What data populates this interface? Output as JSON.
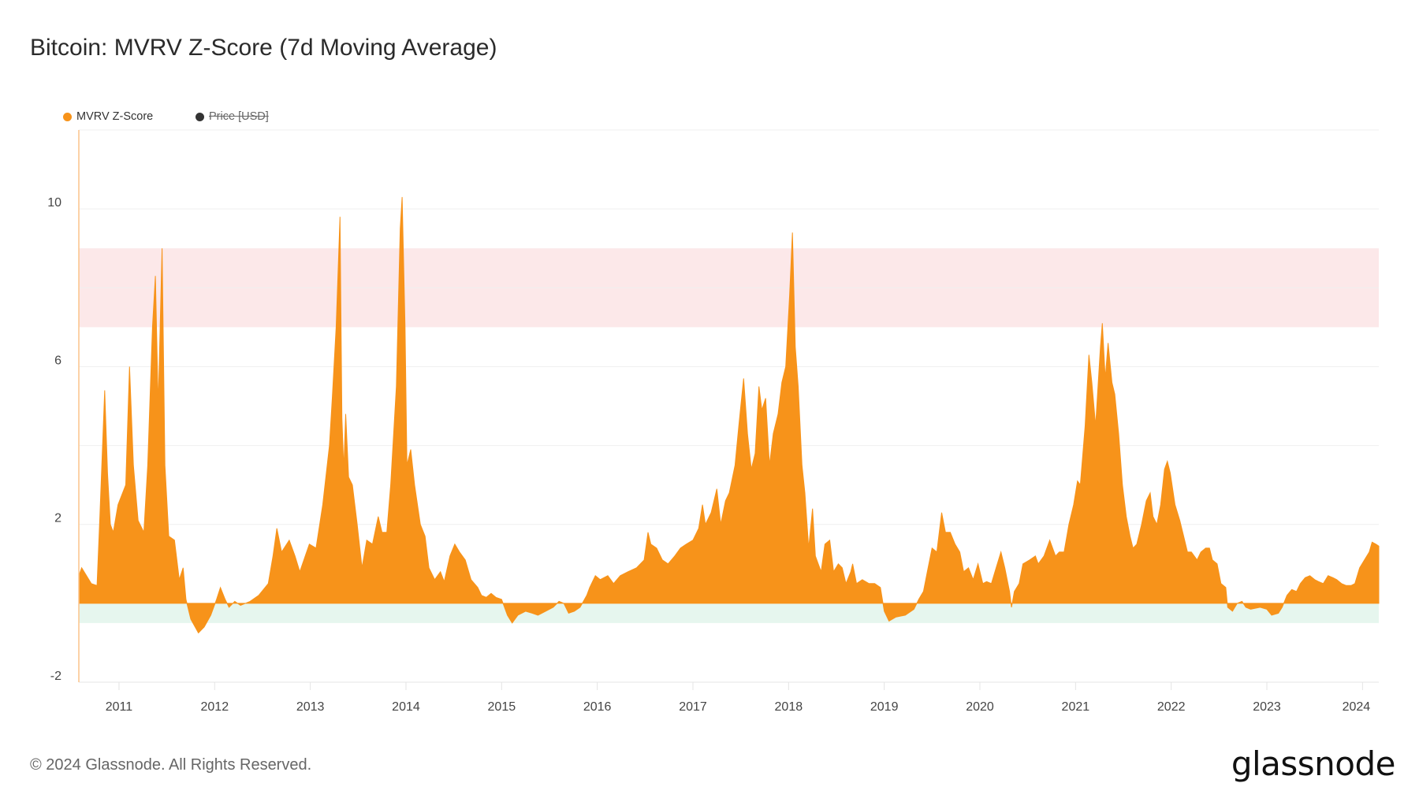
{
  "title": "Bitcoin: MVRV Z-Score (7d Moving Average)",
  "legend": [
    {
      "label": "MVRV Z-Score",
      "color": "#f7931a",
      "active": true
    },
    {
      "label": "Price [USD]",
      "color": "#333333",
      "active": false
    }
  ],
  "footer": "© 2024 Glassnode. All Rights Reserved.",
  "logo": "glassnode",
  "chart_data": {
    "type": "area",
    "title": "Bitcoin: MVRV Z-Score (7d Moving Average)",
    "xlabel": "",
    "ylabel": "",
    "xlim": [
      2010.58,
      2024.17
    ],
    "ylim": [
      -2,
      12
    ],
    "grid": true,
    "legend_position": "top-left",
    "x_ticks": [
      "2011",
      "2012",
      "2013",
      "2014",
      "2015",
      "2016",
      "2017",
      "2018",
      "2019",
      "2020",
      "2021",
      "2022",
      "2023",
      "2024"
    ],
    "y_ticks": [
      10,
      6,
      2,
      -2
    ],
    "y_grid": [
      -2,
      0,
      2,
      4,
      6,
      8,
      10,
      12
    ],
    "bands": [
      {
        "name": "overvalued-zone",
        "from": 7,
        "to": 9,
        "color": "#fce8e9"
      },
      {
        "name": "undervalued-zone",
        "from": -0.5,
        "to": 0,
        "color": "#e6f6ee"
      }
    ],
    "series": [
      {
        "name": "MVRV Z-Score",
        "color": "#f7931a",
        "x": [
          2010.58,
          2010.61,
          2010.71,
          2010.77,
          2010.8,
          2010.85,
          2010.88,
          2010.91,
          2010.94,
          2010.99,
          2011.07,
          2011.11,
          2011.15,
          2011.2,
          2011.26,
          2011.3,
          2011.35,
          2011.38,
          2011.41,
          2011.45,
          2011.48,
          2011.52,
          2011.58,
          2011.63,
          2011.67,
          2011.7,
          2011.75,
          2011.83,
          2011.89,
          2011.96,
          2012.02,
          2012.06,
          2012.11,
          2012.15,
          2012.21,
          2012.27,
          2012.37,
          2012.46,
          2012.56,
          2012.61,
          2012.65,
          2012.7,
          2012.78,
          2012.84,
          2012.89,
          2012.99,
          2013.06,
          2013.13,
          2013.2,
          2013.23,
          2013.27,
          2013.31,
          2013.33,
          2013.35,
          2013.37,
          2013.4,
          2013.44,
          2013.49,
          2013.54,
          2013.59,
          2013.65,
          2013.71,
          2013.75,
          2013.8,
          2013.84,
          2013.9,
          2013.94,
          2013.96,
          2013.99,
          2014.01,
          2014.05,
          2014.09,
          2014.15,
          2014.2,
          2014.24,
          2014.3,
          2014.36,
          2014.4,
          2014.46,
          2014.51,
          2014.56,
          2014.62,
          2014.68,
          2014.75,
          2014.79,
          2014.84,
          2014.89,
          2014.94,
          2015.0,
          2015.06,
          2015.11,
          2015.17,
          2015.25,
          2015.32,
          2015.38,
          2015.46,
          2015.54,
          2015.6,
          2015.65,
          2015.7,
          2015.76,
          2015.82,
          2015.89,
          2015.92,
          2015.98,
          2016.03,
          2016.11,
          2016.17,
          2016.24,
          2016.32,
          2016.41,
          2016.49,
          2016.53,
          2016.56,
          2016.62,
          2016.68,
          2016.74,
          2016.81,
          2016.87,
          2016.93,
          2017.0,
          2017.06,
          2017.1,
          2017.13,
          2017.19,
          2017.25,
          2017.29,
          2017.34,
          2017.38,
          2017.44,
          2017.48,
          2017.5,
          2017.53,
          2017.57,
          2017.61,
          2017.65,
          2017.69,
          2017.72,
          2017.76,
          2017.8,
          2017.84,
          2017.89,
          2017.93,
          2017.97,
          2018.01,
          2018.04,
          2018.07,
          2018.1,
          2018.14,
          2018.17,
          2018.21,
          2018.25,
          2018.28,
          2018.34,
          2018.38,
          2018.43,
          2018.47,
          2018.52,
          2018.56,
          2018.6,
          2018.65,
          2018.67,
          2018.71,
          2018.77,
          2018.84,
          2018.9,
          2018.96,
          2019.0,
          2019.05,
          2019.12,
          2019.22,
          2019.31,
          2019.36,
          2019.41,
          2019.45,
          2019.5,
          2019.55,
          2019.6,
          2019.64,
          2019.69,
          2019.74,
          2019.79,
          2019.83,
          2019.88,
          2019.93,
          2019.98,
          2020.03,
          2020.07,
          2020.12,
          2020.17,
          2020.22,
          2020.26,
          2020.31,
          2020.33,
          2020.36,
          2020.41,
          2020.45,
          2020.52,
          2020.58,
          2020.61,
          2020.67,
          2020.73,
          2020.79,
          2020.83,
          2020.88,
          2020.93,
          2020.98,
          2021.02,
          2021.05,
          2021.1,
          2021.14,
          2021.17,
          2021.21,
          2021.26,
          2021.28,
          2021.31,
          2021.34,
          2021.38,
          2021.41,
          2021.45,
          2021.49,
          2021.53,
          2021.57,
          2021.6,
          2021.64,
          2021.69,
          2021.74,
          2021.78,
          2021.81,
          2021.85,
          2021.89,
          2021.93,
          2021.96,
          2021.99,
          2022.04,
          2022.09,
          2022.14,
          2022.17,
          2022.21,
          2022.27,
          2022.31,
          2022.36,
          2022.4,
          2022.43,
          2022.48,
          2022.52,
          2022.57,
          2022.59,
          2022.64,
          2022.69,
          2022.74,
          2022.78,
          2022.83,
          2022.93,
          2023.0,
          2023.05,
          2023.12,
          2023.16,
          2023.21,
          2023.26,
          2023.31,
          2023.35,
          2023.4,
          2023.45,
          2023.5,
          2023.54,
          2023.59,
          2023.64,
          2023.69,
          2023.73,
          2023.78,
          2023.83,
          2023.88,
          2023.92,
          2023.97,
          2024.02,
          2024.07,
          2024.1,
          2024.14,
          2024.17
        ],
        "y": [
          0.7,
          0.9,
          0.5,
          0.45,
          2.2,
          5.4,
          3.3,
          2.0,
          1.8,
          2.5,
          3.0,
          6.0,
          3.5,
          2.1,
          1.8,
          3.5,
          7.0,
          8.3,
          5.0,
          9.0,
          3.5,
          1.7,
          1.6,
          0.6,
          0.9,
          0.1,
          -0.4,
          -0.75,
          -0.6,
          -0.3,
          0.1,
          0.4,
          0.1,
          -0.1,
          0.05,
          -0.05,
          0.05,
          0.2,
          0.5,
          1.2,
          1.9,
          1.3,
          1.6,
          1.2,
          0.8,
          1.5,
          1.4,
          2.5,
          4.0,
          5.2,
          7.0,
          9.8,
          4.7,
          3.4,
          4.8,
          3.2,
          3.0,
          2.0,
          0.9,
          1.6,
          1.5,
          2.2,
          1.8,
          1.8,
          3.0,
          5.5,
          9.5,
          10.3,
          7.0,
          3.5,
          3.9,
          3.0,
          2.0,
          1.7,
          0.9,
          0.6,
          0.8,
          0.55,
          1.2,
          1.5,
          1.3,
          1.1,
          0.6,
          0.4,
          0.2,
          0.15,
          0.25,
          0.15,
          0.1,
          -0.3,
          -0.5,
          -0.3,
          -0.2,
          -0.25,
          -0.3,
          -0.2,
          -0.1,
          0.05,
          0.0,
          -0.25,
          -0.2,
          -0.1,
          0.2,
          0.4,
          0.7,
          0.6,
          0.7,
          0.5,
          0.7,
          0.8,
          0.9,
          1.1,
          1.8,
          1.5,
          1.4,
          1.1,
          1.0,
          1.2,
          1.4,
          1.5,
          1.6,
          1.9,
          2.5,
          2.0,
          2.3,
          2.9,
          2.0,
          2.6,
          2.8,
          3.5,
          4.5,
          5.0,
          5.7,
          4.3,
          3.4,
          3.8,
          5.5,
          4.9,
          5.2,
          3.5,
          4.3,
          4.8,
          5.6,
          6.0,
          7.8,
          9.4,
          6.5,
          5.5,
          3.5,
          2.8,
          1.4,
          2.4,
          1.2,
          0.8,
          1.5,
          1.6,
          0.8,
          1.0,
          0.9,
          0.5,
          0.8,
          1.0,
          0.5,
          0.6,
          0.5,
          0.5,
          0.4,
          -0.2,
          -0.45,
          -0.35,
          -0.3,
          -0.15,
          0.1,
          0.3,
          0.8,
          1.4,
          1.3,
          2.3,
          1.8,
          1.8,
          1.5,
          1.3,
          0.8,
          0.9,
          0.6,
          1.0,
          0.5,
          0.55,
          0.5,
          0.9,
          1.3,
          0.9,
          0.3,
          -0.1,
          0.3,
          0.5,
          1.0,
          1.1,
          1.2,
          1.0,
          1.2,
          1.6,
          1.2,
          1.3,
          1.3,
          2.0,
          2.5,
          3.1,
          3.0,
          4.5,
          6.3,
          5.6,
          4.5,
          6.5,
          7.1,
          5.7,
          6.6,
          5.6,
          5.3,
          4.3,
          3.0,
          2.2,
          1.7,
          1.4,
          1.5,
          2.0,
          2.6,
          2.8,
          2.2,
          2.0,
          2.5,
          3.4,
          3.6,
          3.3,
          2.5,
          2.1,
          1.6,
          1.3,
          1.3,
          1.1,
          1.3,
          1.4,
          1.4,
          1.1,
          1.0,
          0.5,
          0.4,
          -0.1,
          -0.2,
          0.0,
          0.05,
          -0.1,
          -0.15,
          -0.1,
          -0.15,
          -0.3,
          -0.25,
          -0.1,
          0.2,
          0.35,
          0.3,
          0.5,
          0.65,
          0.7,
          0.6,
          0.55,
          0.5,
          0.7,
          0.65,
          0.6,
          0.5,
          0.45,
          0.45,
          0.5,
          0.9,
          1.1,
          1.3,
          1.55,
          1.5,
          1.45
        ]
      }
    ]
  }
}
